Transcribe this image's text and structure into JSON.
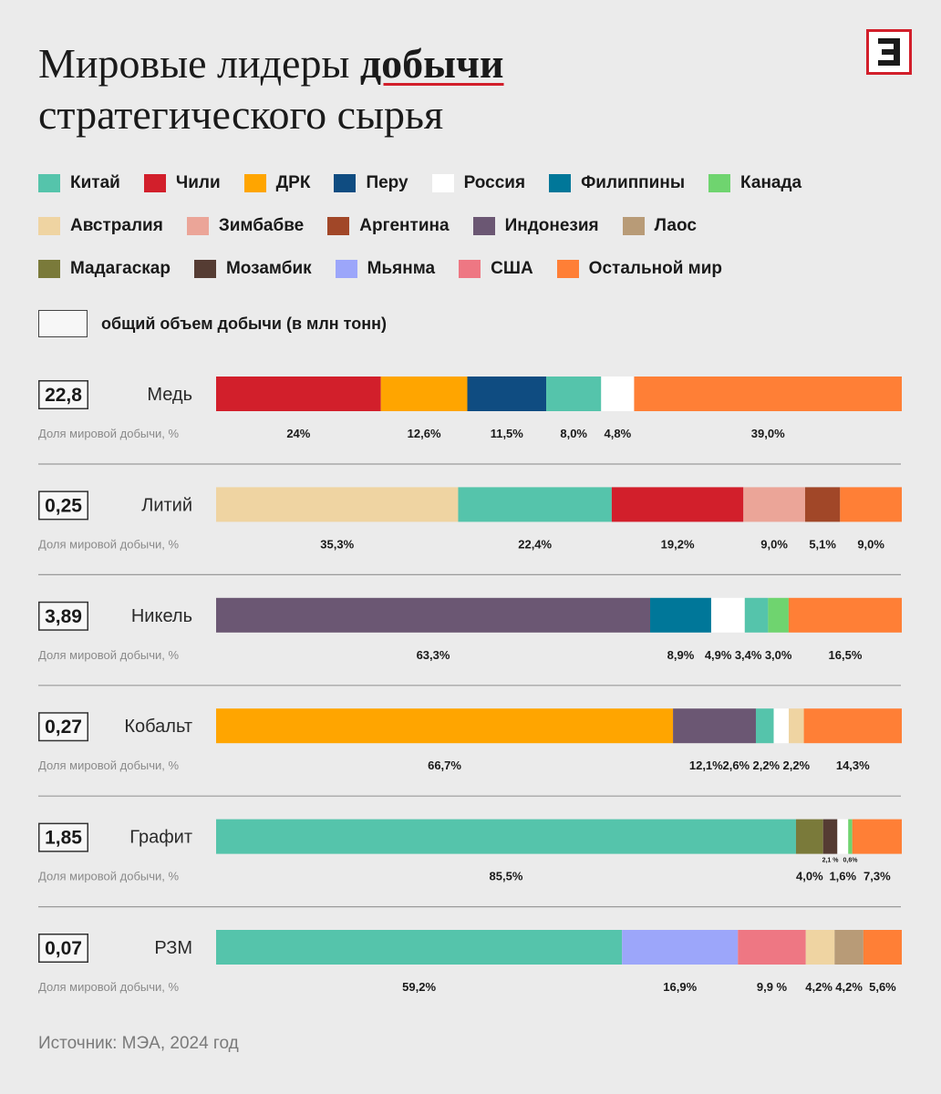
{
  "title": {
    "part1": "Мировые лидеры ",
    "highlight": "добычи",
    "part2": "стратегического сырья"
  },
  "logo": {
    "letter": "Э",
    "color": "#d21f2b"
  },
  "colors": {
    "china": "#55c4ab",
    "chile": "#d21f2b",
    "drc": "#ffa500",
    "peru": "#0f4c81",
    "russia": "#ffffff",
    "philippines": "#007799",
    "canada": "#6fd46f",
    "australia": "#efd4a2",
    "zimbabwe": "#eba598",
    "argentina": "#a14728",
    "indonesia": "#6b5773",
    "laos": "#b89b77",
    "madagascar": "#7a7a3a",
    "mozambique": "#553c33",
    "myanmar": "#9ca6fa",
    "usa": "#ee7783",
    "rest": "#ff7f36"
  },
  "legend": [
    [
      {
        "label": "Китай",
        "key": "china"
      },
      {
        "label": "Чили",
        "key": "chile"
      },
      {
        "label": "ДРК",
        "key": "drc"
      },
      {
        "label": "Перу",
        "key": "peru"
      },
      {
        "label": "Россия",
        "key": "russia"
      },
      {
        "label": "Филиппины",
        "key": "philippines"
      },
      {
        "label": "Канада",
        "key": "canada"
      }
    ],
    [
      {
        "label": "Австралия",
        "key": "australia"
      },
      {
        "label": "Зимбабве",
        "key": "zimbabwe"
      },
      {
        "label": "Аргентина",
        "key": "argentina"
      },
      {
        "label": "Индонезия",
        "key": "indonesia"
      },
      {
        "label": "Лаос",
        "key": "laos"
      }
    ],
    [
      {
        "label": "Мадагаскар",
        "key": "madagascar"
      },
      {
        "label": "Мозамбик",
        "key": "mozambique"
      },
      {
        "label": "Мьянма",
        "key": "myanmar"
      },
      {
        "label": "США",
        "key": "usa"
      },
      {
        "label": "Остальной мир",
        "key": "rest"
      }
    ]
  ],
  "legend_total_label": "общий объем добычи (в млн тонн)",
  "share_label": "Доля мировой добычи, %",
  "chart_data": {
    "type": "bar",
    "orientation": "horizontal-stacked",
    "title": "Мировые лидеры добычи стратегического сырья",
    "value_unit": "% мировой добычи",
    "total_unit": "млн тонн",
    "rows": [
      {
        "name": "Медь",
        "total": "22,8",
        "segments": [
          {
            "key": "chile",
            "value": 24.0,
            "label": "24%"
          },
          {
            "key": "drc",
            "value": 12.6,
            "label": "12,6%"
          },
          {
            "key": "peru",
            "value": 11.5,
            "label": "11,5%"
          },
          {
            "key": "china",
            "value": 8.0,
            "label": "8,0%"
          },
          {
            "key": "russia",
            "value": 4.8,
            "label": "4,8%"
          },
          {
            "key": "rest",
            "value": 39.0,
            "label": "39,0%"
          }
        ]
      },
      {
        "name": "Литий",
        "total": "0,25",
        "segments": [
          {
            "key": "australia",
            "value": 35.3,
            "label": "35,3%"
          },
          {
            "key": "china",
            "value": 22.4,
            "label": "22,4%"
          },
          {
            "key": "chile",
            "value": 19.2,
            "label": "19,2%"
          },
          {
            "key": "zimbabwe",
            "value": 9.0,
            "label": "9,0%"
          },
          {
            "key": "argentina",
            "value": 5.1,
            "label": "5,1%"
          },
          {
            "key": "rest",
            "value": 9.0,
            "label": "9,0%"
          }
        ]
      },
      {
        "name": "Никель",
        "total": "3,89",
        "segments": [
          {
            "key": "indonesia",
            "value": 63.3,
            "label": "63,3%"
          },
          {
            "key": "philippines",
            "value": 8.9,
            "label": "8,9%"
          },
          {
            "key": "russia",
            "value": 4.9,
            "label": "4,9%"
          },
          {
            "key": "china",
            "value": 3.4,
            "label": "3,4%"
          },
          {
            "key": "canada",
            "value": 3.0,
            "label": "3,0%"
          },
          {
            "key": "rest",
            "value": 16.5,
            "label": "16,5%"
          }
        ]
      },
      {
        "name": "Кобальт",
        "total": "0,27",
        "segments": [
          {
            "key": "drc",
            "value": 66.7,
            "label": "66,7%"
          },
          {
            "key": "indonesia",
            "value": 12.1,
            "label": "12,1%"
          },
          {
            "key": "china",
            "value": 2.6,
            "label": "2,6%"
          },
          {
            "key": "russia",
            "value": 2.2,
            "label": "2,2%"
          },
          {
            "key": "australia",
            "value": 2.2,
            "label": "2,2%"
          },
          {
            "key": "rest",
            "value": 14.3,
            "label": "14,3%"
          }
        ]
      },
      {
        "name": "Графит",
        "total": "1,85",
        "segments": [
          {
            "key": "china",
            "value": 85.5,
            "label": "85,5%"
          },
          {
            "key": "madagascar",
            "value": 4.0,
            "label": "4,0%"
          },
          {
            "key": "mozambique",
            "value": 2.1,
            "label": "2,1 %",
            "small": true
          },
          {
            "key": "russia",
            "value": 1.6,
            "label": "1,6%"
          },
          {
            "key": "canada",
            "value": 0.6,
            "label": "0,6%",
            "small": true
          },
          {
            "key": "rest",
            "value": 7.3,
            "label": "7,3%"
          }
        ]
      },
      {
        "name": "РЗМ",
        "total": "0,07",
        "segments": [
          {
            "key": "china",
            "value": 59.2,
            "label": "59,2%"
          },
          {
            "key": "myanmar",
            "value": 16.9,
            "label": "16,9%"
          },
          {
            "key": "usa",
            "value": 9.9,
            "label": "9,9 %"
          },
          {
            "key": "australia",
            "value": 4.2,
            "label": "4,2%"
          },
          {
            "key": "laos",
            "value": 4.2,
            "label": "4,2%"
          },
          {
            "key": "rest",
            "value": 5.6,
            "label": "5,6%"
          }
        ]
      }
    ]
  },
  "source": "Источник: МЭА, 2024 год"
}
